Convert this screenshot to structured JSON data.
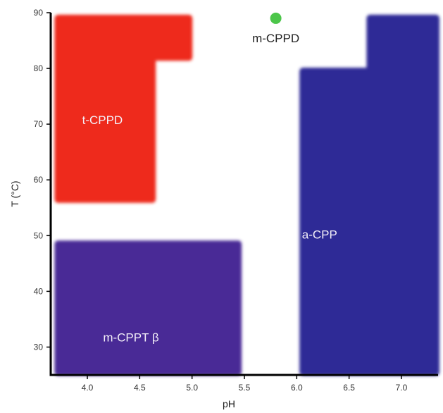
{
  "chart_data": {
    "type": "phase-diagram",
    "xlabel": "pH",
    "ylabel": "T (°C)",
    "xlim": [
      3.65,
      7.35
    ],
    "ylim": [
      25,
      90
    ],
    "xticks": [
      4.0,
      4.5,
      5.0,
      5.5,
      6.0,
      6.5,
      7.0
    ],
    "xtick_labels": [
      "4.0",
      "4.5",
      "5.0",
      "5.5",
      "6.0",
      "6.5",
      "7.0"
    ],
    "yticks": [
      30,
      40,
      50,
      60,
      70,
      80,
      90
    ],
    "ytick_labels": [
      "30",
      "40",
      "50",
      "60",
      "70",
      "80",
      "90"
    ],
    "grid": false,
    "regions": [
      {
        "name": "t-CPPD",
        "color": "#ee2a1e",
        "polygon": [
          [
            3.72,
            89
          ],
          [
            4.97,
            89
          ],
          [
            4.97,
            82
          ],
          [
            4.62,
            82
          ],
          [
            4.62,
            56.5
          ],
          [
            3.72,
            56.5
          ]
        ],
        "label_at": [
          3.95,
          70
        ]
      },
      {
        "name": "m-CPPT β",
        "color": "#4a2a96",
        "polygon": [
          [
            3.72,
            48.5
          ],
          [
            5.44,
            48.5
          ],
          [
            5.44,
            25.5
          ],
          [
            3.72,
            25.5
          ]
        ],
        "label_at": [
          4.15,
          31
        ]
      },
      {
        "name": "a-CPP",
        "color": "#2e2a96",
        "polygon": [
          [
            6.7,
            89
          ],
          [
            7.33,
            89
          ],
          [
            7.33,
            25.5
          ],
          [
            6.06,
            25.5
          ],
          [
            6.06,
            79.5
          ],
          [
            6.7,
            79.5
          ]
        ],
        "label_at": [
          6.05,
          49.5
        ]
      }
    ],
    "points": [
      {
        "name": "m-CPPD",
        "x": 5.8,
        "y": 89,
        "color": "#4cc64a"
      }
    ]
  }
}
